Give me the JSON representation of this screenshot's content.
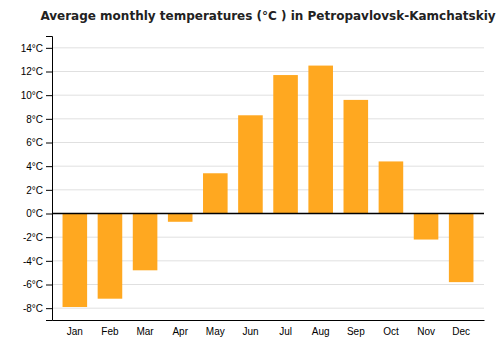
{
  "chart_data": {
    "type": "bar",
    "title": "Average monthly temperatures (°C ) in Petropavlovsk-Kamchatskiy",
    "categories": [
      "Jan",
      "Feb",
      "Mar",
      "Apr",
      "May",
      "Jun",
      "Jul",
      "Aug",
      "Sep",
      "Oct",
      "Nov",
      "Dec"
    ],
    "values": [
      -7.9,
      -7.2,
      -4.8,
      -0.7,
      3.4,
      8.3,
      11.7,
      12.5,
      9.6,
      4.4,
      -2.2,
      -5.8
    ],
    "color": "#FFA820",
    "ylim": [
      -9,
      15
    ],
    "yticks": [
      {
        "value": -8,
        "label": "-8°C"
      },
      {
        "value": -6,
        "label": "-6°C"
      },
      {
        "value": -4,
        "label": "-4°C"
      },
      {
        "value": -2,
        "label": "-2°C"
      },
      {
        "value": 0,
        "label": "0°C"
      },
      {
        "value": 2,
        "label": "2°C"
      },
      {
        "value": 4,
        "label": "4°C"
      },
      {
        "value": 6,
        "label": "6°C"
      },
      {
        "value": 8,
        "label": "8°C"
      },
      {
        "value": 10,
        "label": "10°C"
      },
      {
        "value": 12,
        "label": "12°C"
      },
      {
        "value": 14,
        "label": "14°C"
      }
    ],
    "grid": true
  }
}
